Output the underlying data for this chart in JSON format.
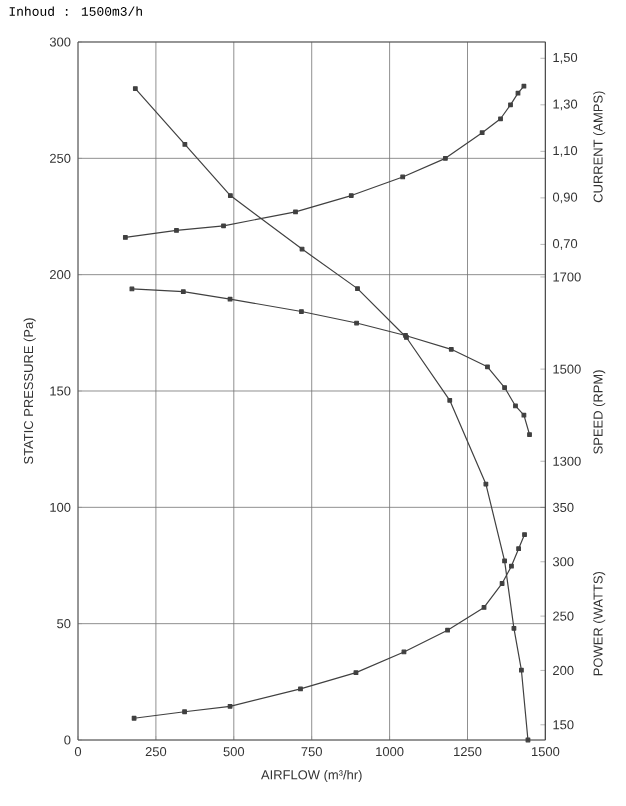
{
  "chart_data": [
    {
      "type": "line",
      "title": "Inhoud : 1500m3/h",
      "xlabel": "AIRFLOW (m³/hr)",
      "ylabel": "STATIC PRESSURE (Pa)",
      "y2label": "CURRENT (AMPS)",
      "y3label": "SPEED (RPM)",
      "xlim": [
        0,
        1500
      ],
      "xticks": [
        0,
        250,
        500,
        750,
        1000,
        1250,
        1500
      ],
      "ylim": [
        0,
        300
      ],
      "yticks": [
        0,
        50,
        100,
        150,
        200,
        250,
        300
      ],
      "y2lim": [
        -1.43,
        1.57
      ],
      "y2ticks": [
        {
          "value": 0.7,
          "label": "0,70"
        },
        {
          "value": 0.9,
          "label": "0,90"
        },
        {
          "value": 1.1,
          "label": "1,10"
        },
        {
          "value": 1.3,
          "label": "1,30"
        },
        {
          "value": 1.5,
          "label": "1,50"
        }
      ],
      "y3lim": [
        695,
        2210
      ],
      "y3ticks": [
        1300,
        1500,
        1700
      ],
      "grid": true,
      "marker": "square",
      "line_style": "solid",
      "series": [
        {
          "axis": "y",
          "color": "#404040",
          "x": [
            184,
            343,
            489,
            719,
            897,
            1054,
            1193,
            1309,
            1369,
            1399,
            1423,
            1444
          ],
          "values": [
            280,
            256,
            234,
            211,
            194,
            173,
            146,
            110,
            77,
            48,
            30,
            0
          ]
        },
        {
          "axis": "y2",
          "color": "#404040",
          "x": [
            152,
            316,
            467,
            698,
            877,
            1042,
            1179,
            1297,
            1356,
            1388,
            1412,
            1431
          ],
          "values": [
            0.73,
            0.76,
            0.78,
            0.84,
            0.91,
            0.99,
            1.07,
            1.18,
            1.24,
            1.3,
            1.35,
            1.38
          ]
        },
        {
          "axis": "y3",
          "color": "#404040",
          "x": [
            173,
            338,
            488,
            717,
            894,
            1051,
            1198,
            1314,
            1369,
            1404,
            1431,
            1449
          ],
          "values": [
            1674,
            1668,
            1652,
            1625,
            1600,
            1573,
            1543,
            1505,
            1460,
            1420,
            1400,
            1358
          ]
        }
      ]
    },
    {
      "type": "line",
      "ylabel": "POWER (WATTS)",
      "tick_labels": "y",
      "xlim": [
        0,
        1500
      ],
      "ylim": [
        136,
        350
      ],
      "yticks": [
        150,
        200,
        250,
        300,
        350
      ],
      "marker": "square",
      "line_style": "solid",
      "series": [
        {
          "color": "#404040",
          "x": [
            180,
            342,
            488,
            714,
            892,
            1046,
            1186,
            1303,
            1361,
            1391,
            1414,
            1433
          ],
          "values": [
            156,
            162,
            167,
            183,
            198,
            217,
            237,
            258,
            280,
            296,
            312,
            325
          ]
        }
      ]
    }
  ]
}
